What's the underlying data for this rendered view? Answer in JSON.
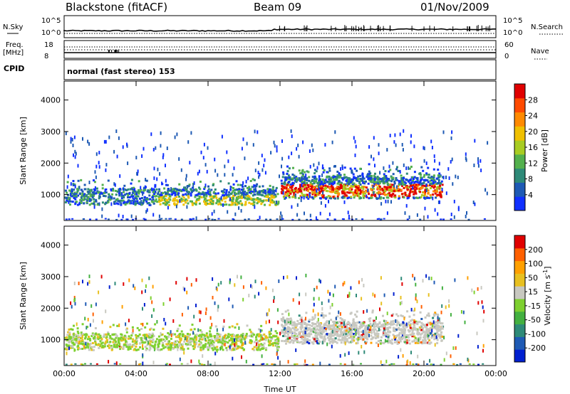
{
  "header": {
    "title": "Blackstone (fitACF)",
    "beam": "Beam 09",
    "date": "01/Nov/2009"
  },
  "noise_panel": {
    "left_label": "N.Sky",
    "right_label": "N.Search",
    "left_ticks": [
      "10^5",
      "10^0"
    ],
    "right_ticks": [
      "10^5",
      "10^0"
    ]
  },
  "freq_panel": {
    "left_label_1": "Freq.",
    "left_label_2": "[MHz]",
    "right_label": "Nave",
    "left_ticks": [
      "18",
      "8"
    ],
    "right_ticks": [
      "60",
      "0"
    ]
  },
  "cpid_panel": {
    "label": "CPID",
    "text": "normal (fast stereo) 153"
  },
  "chart_data": [
    {
      "type": "heatmap",
      "name": "power",
      "ylabel": "Slant Range [km]",
      "yticks": [
        1000,
        2000,
        3000,
        4000
      ],
      "ylim": [
        180,
        4600
      ],
      "xlabel": "Time UT",
      "xtick_labels": [
        "00:00",
        "04:00",
        "08:00",
        "12:00",
        "16:00",
        "20:00",
        "00:00"
      ],
      "xlim_hours": [
        0,
        24
      ],
      "colorbar": {
        "label": "Power [dB]",
        "range": [
          0,
          32
        ],
        "tick_labels": [
          "4",
          "8",
          "12",
          "16",
          "20",
          "24",
          "28"
        ],
        "colors": [
          "#1030ff",
          "#1e5ab4",
          "#2e8a78",
          "#53b04d",
          "#a8cc22",
          "#f0c000",
          "#ff8a00",
          "#ff4a00",
          "#e00000"
        ]
      }
    },
    {
      "type": "heatmap",
      "name": "velocity",
      "ylabel": "Slant Range [km]",
      "yticks": [
        1000,
        2000,
        3000,
        4000
      ],
      "ylim": [
        180,
        4600
      ],
      "xlabel": "Time UT",
      "xtick_labels": [
        "00:00",
        "04:00",
        "08:00",
        "12:00",
        "16:00",
        "20:00",
        "00:00"
      ],
      "xlim_hours": [
        0,
        24
      ],
      "colorbar": {
        "label": "Velocity [m s",
        "label_superscript": "-1",
        "label_close": "]",
        "range": [
          -250,
          250
        ],
        "tick_labels": [
          "200",
          "100",
          "50",
          "15",
          "-15",
          "-50",
          "-100",
          "-200"
        ],
        "colors": [
          "#0020d0",
          "#1e5ab4",
          "#2e8a78",
          "#43b040",
          "#7ed030",
          "#c8c8c0",
          "#e8c020",
          "#ffa000",
          "#ff6000",
          "#e00000"
        ]
      }
    }
  ]
}
